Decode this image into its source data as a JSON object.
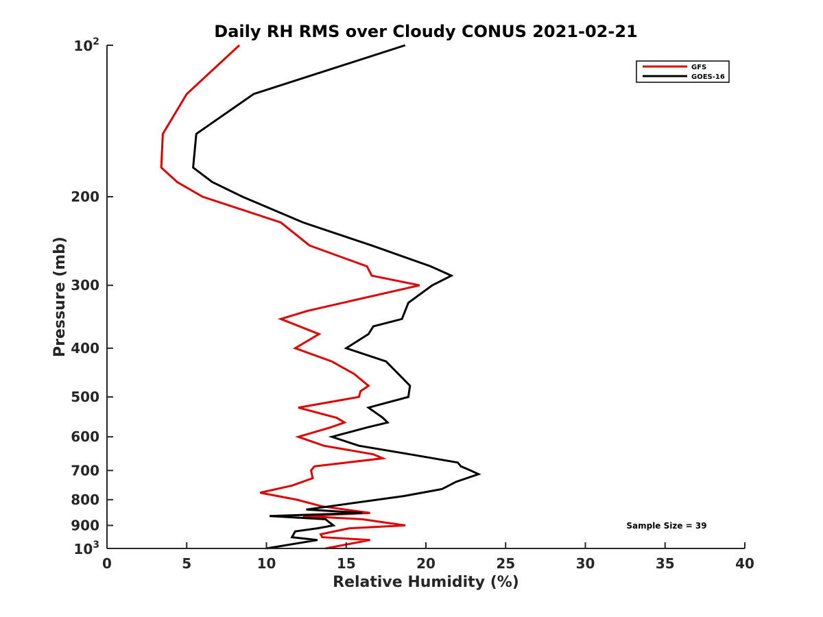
{
  "chart_data": {
    "type": "line",
    "title": "Daily RH RMS over Cloudy CONUS 2021-02-21",
    "xlabel": "Relative Humidity (%)",
    "ylabel": "Pressure (mb)",
    "xlim": [
      0,
      40
    ],
    "ylim": [
      100,
      1000
    ],
    "y_scale": "log",
    "y_reversed": true,
    "grid": false,
    "legend_position": "top-right",
    "x_ticks": [
      0,
      5,
      10,
      15,
      20,
      25,
      30,
      35,
      40
    ],
    "x_tick_labels": [
      "0",
      "5",
      "10",
      "15",
      "20",
      "25",
      "30",
      "35",
      "40"
    ],
    "y_ticks": [
      {
        "value": 100,
        "base": "10",
        "exp": "2"
      },
      {
        "value": 200,
        "label": "200"
      },
      {
        "value": 300,
        "label": "300"
      },
      {
        "value": 400,
        "label": "400"
      },
      {
        "value": 500,
        "label": "500"
      },
      {
        "value": 600,
        "label": "600"
      },
      {
        "value": 700,
        "label": "700"
      },
      {
        "value": 800,
        "label": "800"
      },
      {
        "value": 900,
        "label": "900"
      },
      {
        "value": 1000,
        "base": "10",
        "exp": "3"
      }
    ],
    "series": [
      {
        "name": "GFS",
        "color": "#e00000",
        "points": [
          [
            8.3,
            100
          ],
          [
            5.0,
            125
          ],
          [
            3.5,
            150
          ],
          [
            3.4,
            175
          ],
          [
            4.4,
            187
          ],
          [
            6.0,
            200
          ],
          [
            10.9,
            225
          ],
          [
            12.7,
            250
          ],
          [
            16.3,
            275
          ],
          [
            16.6,
            287
          ],
          [
            19.6,
            300
          ],
          [
            12.6,
            337
          ],
          [
            10.9,
            350
          ],
          [
            13.3,
            375
          ],
          [
            11.8,
            400
          ],
          [
            14.1,
            425
          ],
          [
            15.5,
            450
          ],
          [
            16.4,
            475
          ],
          [
            15.9,
            487
          ],
          [
            15.8,
            500
          ],
          [
            12.0,
            525
          ],
          [
            14.4,
            550
          ],
          [
            14.9,
            562
          ],
          [
            14.0,
            575
          ],
          [
            12.0,
            600
          ],
          [
            13.6,
            625
          ],
          [
            16.7,
            650
          ],
          [
            17.3,
            662
          ],
          [
            13.0,
            687
          ],
          [
            12.8,
            700
          ],
          [
            12.9,
            725
          ],
          [
            11.6,
            750
          ],
          [
            9.6,
            775
          ],
          [
            11.9,
            800
          ],
          [
            13.5,
            825
          ],
          [
            16.5,
            850
          ],
          [
            12.3,
            862
          ],
          [
            16.0,
            875
          ],
          [
            18.7,
            900
          ],
          [
            15.2,
            912
          ],
          [
            13.4,
            937
          ],
          [
            13.5,
            950
          ],
          [
            16.5,
            962
          ],
          [
            13.7,
            1000
          ]
        ]
      },
      {
        "name": "GOES-16",
        "color": "#000000",
        "points": [
          [
            18.7,
            100
          ],
          [
            9.2,
            125
          ],
          [
            5.6,
            150
          ],
          [
            5.4,
            175
          ],
          [
            6.6,
            187
          ],
          [
            8.5,
            200
          ],
          [
            12.3,
            225
          ],
          [
            16.6,
            250
          ],
          [
            20.3,
            275
          ],
          [
            21.6,
            287
          ],
          [
            20.4,
            300
          ],
          [
            18.9,
            325
          ],
          [
            18.5,
            350
          ],
          [
            16.7,
            362
          ],
          [
            16.4,
            375
          ],
          [
            15.0,
            400
          ],
          [
            17.5,
            425
          ],
          [
            19.0,
            475
          ],
          [
            18.9,
            500
          ],
          [
            16.4,
            525
          ],
          [
            17.3,
            550
          ],
          [
            17.6,
            562
          ],
          [
            16.3,
            575
          ],
          [
            14.1,
            600
          ],
          [
            15.8,
            625
          ],
          [
            19.0,
            650
          ],
          [
            22.0,
            675
          ],
          [
            22.2,
            687
          ],
          [
            22.8,
            700
          ],
          [
            23.3,
            712
          ],
          [
            21.9,
            737
          ],
          [
            21.0,
            762
          ],
          [
            18.6,
            787
          ],
          [
            12.5,
            837
          ],
          [
            16.0,
            850
          ],
          [
            10.2,
            862
          ],
          [
            13.7,
            875
          ],
          [
            14.2,
            900
          ],
          [
            13.2,
            912
          ],
          [
            11.8,
            925
          ],
          [
            11.6,
            950
          ],
          [
            13.2,
            962
          ],
          [
            10.0,
            1000
          ]
        ]
      }
    ],
    "annotations": [
      "Sample Size = 39"
    ]
  }
}
